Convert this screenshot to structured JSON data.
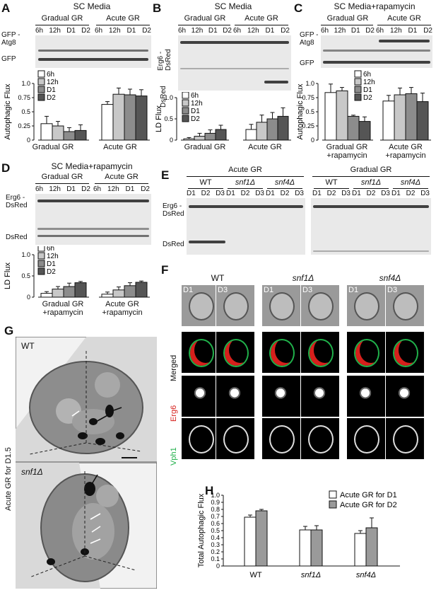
{
  "panels": {
    "A": {
      "letter": "A",
      "title": "SC Media",
      "groups": [
        "Gradual GR",
        "Acute GR"
      ],
      "lanes": [
        "6h",
        "12h",
        "D1",
        "D2"
      ],
      "blot_labels": [
        "GFP -Atg8",
        "GFP"
      ],
      "ylabel": "Autophagic Flux",
      "xcats": [
        "Gradual GR",
        "Acute GR"
      ],
      "legend": [
        "6h",
        "12h",
        "D1",
        "D2"
      ],
      "yticks": [
        "0",
        "0.25",
        "0.5",
        "0.75",
        "1.0"
      ]
    },
    "B": {
      "letter": "B",
      "title": "SC Media",
      "groups": [
        "Gradual GR",
        "Acute GR"
      ],
      "lanes": [
        "6h",
        "12h",
        "D1",
        "D2"
      ],
      "blot_labels": [
        "Erg6 -DsRed",
        "DsRed"
      ],
      "ylabel": "LD Flux",
      "xcats": [
        "Gradual GR",
        "Acute GR"
      ],
      "legend": [
        "6h",
        "12h",
        "D1",
        "D2"
      ],
      "yticks": [
        "0",
        "0.5",
        "1.0"
      ]
    },
    "C": {
      "letter": "C",
      "title": "SC Media+rapamycin",
      "groups": [
        "Gradual GR",
        "Acute GR"
      ],
      "lanes": [
        "6h",
        "12h",
        "D1",
        "D2"
      ],
      "blot_labels": [
        "GFP -Atg8",
        "GFP"
      ],
      "ylabel": "Autophagic Flux",
      "xcats": [
        "Gradual GR +rapamycin",
        "Acute GR +rapamycin"
      ],
      "legend": [
        "6h",
        "12h",
        "D1",
        "D2"
      ],
      "yticks": [
        "0",
        "0.25",
        "0.5",
        "0.75",
        "1.0"
      ]
    },
    "D": {
      "letter": "D",
      "title": "SC Media+rapamycin",
      "groups": [
        "Gradual GR",
        "Acute GR"
      ],
      "lanes": [
        "6h",
        "12h",
        "D1",
        "D2"
      ],
      "blot_labels": [
        "Erg6 -DsRed",
        "DsRed"
      ],
      "ylabel": "LD Flux",
      "xcats": [
        "Gradual GR +rapamycin",
        "Acute GR +rapamycin"
      ],
      "legend": [
        "6h",
        "12h",
        "D1",
        "D2"
      ],
      "yticks": [
        "0",
        "0.5",
        "1.0"
      ]
    },
    "E": {
      "letter": "E",
      "groups": [
        "Acute GR",
        "Gradual GR"
      ],
      "strains": [
        "WT",
        "snf1Δ",
        "snf4Δ"
      ],
      "lanes": [
        "D1",
        "D2",
        "D3"
      ],
      "blot_labels": [
        "Erg6 -DsRed",
        "DsRed"
      ]
    },
    "F": {
      "letter": "F",
      "strains": [
        "WT",
        "snf1Δ",
        "snf4Δ"
      ],
      "days": [
        "D1",
        "D3"
      ],
      "rows": [
        "Merged",
        "Erg6",
        "Vph1"
      ]
    },
    "G": {
      "letter": "G",
      "side_label": "Acute GR for D1.5",
      "cells": [
        "WT",
        "snf1Δ"
      ]
    },
    "H": {
      "letter": "H",
      "ylabel": "Total Autophagic Flux",
      "legend": [
        "Acute GR for D1",
        "Acute GR for D2"
      ],
      "yticks": [
        "0",
        "0.1",
        "0.2",
        "0.3",
        "0.4",
        "0.5",
        "0.6",
        "0.7",
        "0.8",
        "0.9",
        "1.0"
      ],
      "xcats": [
        "WT",
        "snf1Δ",
        "snf4Δ"
      ]
    }
  },
  "colors": {
    "c6h": "#ffffff",
    "c12h": "#c8c8c8",
    "cD1": "#8c8c8c",
    "cD2": "#555555",
    "erg6": "#d6201c",
    "vph1": "#20b04a",
    "h_d1": "#ffffff",
    "h_d2": "#9a9a9a"
  },
  "chart_data": [
    {
      "type": "bar",
      "panel": "A",
      "ylabel": "Autophagic Flux",
      "ylim": [
        0,
        1.0
      ],
      "categories": [
        "Gradual GR",
        "Acute GR"
      ],
      "series": [
        {
          "name": "6h",
          "values": [
            0.29,
            0.63
          ]
        },
        {
          "name": "12h",
          "values": [
            0.25,
            0.81
          ]
        },
        {
          "name": "D1",
          "values": [
            0.15,
            0.8
          ]
        },
        {
          "name": "D2",
          "values": [
            0.17,
            0.78
          ]
        }
      ],
      "errors": [
        [
          0.13,
          0.05
        ],
        [
          0.08,
          0.11
        ],
        [
          0.07,
          0.1
        ],
        [
          0.1,
          0.11
        ]
      ]
    },
    {
      "type": "bar",
      "panel": "B",
      "ylabel": "LD Flux",
      "ylim": [
        0,
        1.0
      ],
      "categories": [
        "Gradual GR",
        "Acute GR"
      ],
      "series": [
        {
          "name": "6h",
          "values": [
            0.03,
            0.25
          ]
        },
        {
          "name": "12h",
          "values": [
            0.09,
            0.42
          ]
        },
        {
          "name": "D1",
          "values": [
            0.16,
            0.5
          ]
        },
        {
          "name": "D2",
          "values": [
            0.25,
            0.56
          ]
        }
      ],
      "errors": [
        [
          0.03,
          0.12
        ],
        [
          0.07,
          0.17
        ],
        [
          0.08,
          0.15
        ],
        [
          0.1,
          0.2
        ]
      ]
    },
    {
      "type": "bar",
      "panel": "C",
      "ylabel": "Autophagic Flux",
      "ylim": [
        0,
        1.0
      ],
      "categories": [
        "Gradual GR +rapamycin",
        "Acute GR +rapamycin"
      ],
      "series": [
        {
          "name": "6h",
          "values": [
            0.84,
            0.69
          ]
        },
        {
          "name": "12h",
          "values": [
            0.87,
            0.8
          ]
        },
        {
          "name": "D1",
          "values": [
            0.42,
            0.82
          ]
        },
        {
          "name": "D2",
          "values": [
            0.33,
            0.68
          ]
        }
      ],
      "errors": [
        [
          0.15,
          0.1
        ],
        [
          0.06,
          0.12
        ],
        [
          0.02,
          0.11
        ],
        [
          0.08,
          0.15
        ]
      ]
    },
    {
      "type": "bar",
      "panel": "D",
      "ylabel": "LD Flux",
      "ylim": [
        0,
        1.0
      ],
      "categories": [
        "Gradual GR +rapamycin",
        "Acute GR +rapamycin"
      ],
      "series": [
        {
          "name": "6h",
          "values": [
            0.09,
            0.07
          ]
        },
        {
          "name": "12h",
          "values": [
            0.19,
            0.17
          ]
        },
        {
          "name": "D1",
          "values": [
            0.25,
            0.27
          ]
        },
        {
          "name": "D2",
          "values": [
            0.34,
            0.35
          ]
        }
      ],
      "errors": [
        [
          0.04,
          0.05
        ],
        [
          0.06,
          0.07
        ],
        [
          0.08,
          0.07
        ],
        [
          0.03,
          0.03
        ]
      ]
    },
    {
      "type": "bar",
      "panel": "H",
      "ylabel": "Total Autophagic Flux",
      "ylim": [
        0,
        1.0
      ],
      "categories": [
        "WT",
        "snf1Δ",
        "snf4Δ"
      ],
      "series": [
        {
          "name": "Acute GR for D1",
          "values": [
            0.69,
            0.51,
            0.46
          ]
        },
        {
          "name": "Acute GR for D2",
          "values": [
            0.78,
            0.51,
            0.54
          ]
        }
      ],
      "errors": [
        [
          0.03,
          0.05,
          0.04
        ],
        [
          0.02,
          0.06,
          0.14
        ]
      ]
    }
  ]
}
